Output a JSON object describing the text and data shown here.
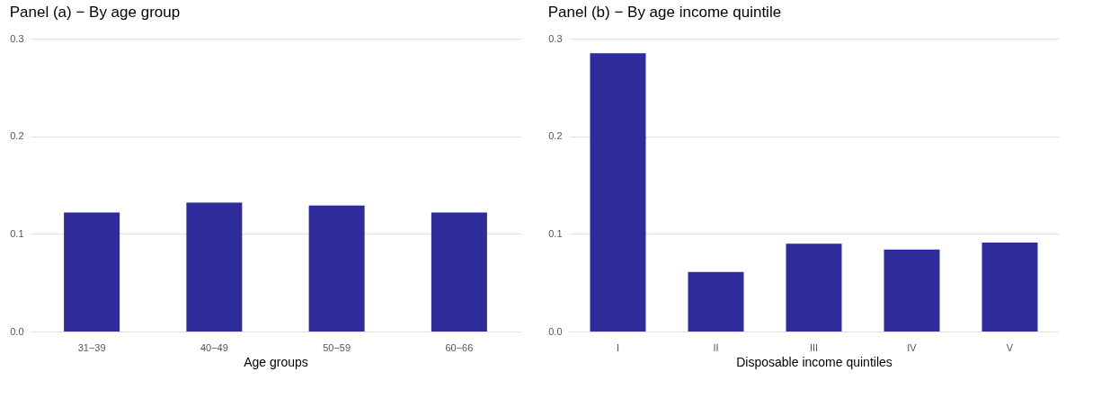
{
  "chart_data": [
    {
      "type": "bar",
      "title": "Panel (a) − By age group",
      "xlabel": "Age groups",
      "categories": [
        "31−39",
        "40−49",
        "50−59",
        "60−66"
      ],
      "values": [
        0.122,
        0.132,
        0.129,
        0.122
      ],
      "color": "#2e2b9b",
      "ylim": [
        0,
        0.3
      ],
      "yticks": [
        {
          "value": 0,
          "label": "0.0"
        },
        0.1,
        0.2,
        0.3
      ],
      "grid": "y"
    },
    {
      "type": "bar",
      "title": "Panel (b) − By age income quintile",
      "xlabel": "Disposable income quintiles",
      "categories": [
        "I",
        "II",
        "III",
        "IV",
        "V"
      ],
      "values": [
        0.285,
        0.061,
        0.09,
        0.084,
        0.091
      ],
      "color": "#2e2b9b",
      "ylim": [
        0,
        0.3
      ],
      "yticks": [
        {
          "value": 0,
          "label": "0.0"
        },
        0.1,
        0.2,
        0.3
      ],
      "grid": "y"
    }
  ]
}
